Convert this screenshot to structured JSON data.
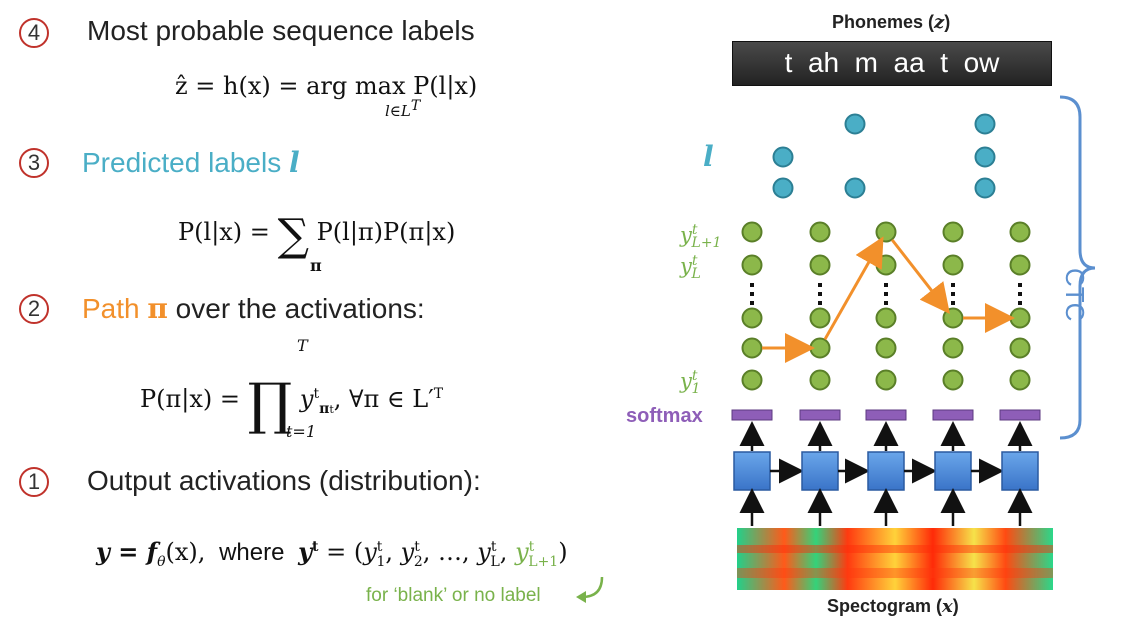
{
  "steps": [
    {
      "num": "4",
      "title": "Most probable sequence labels"
    },
    {
      "num": "3",
      "title_plain": "Predicted labels ",
      "title_var": "l"
    },
    {
      "num": "2",
      "title_colored": "Path ",
      "title_var": "π",
      "title_rest": " over the activations:"
    },
    {
      "num": "1",
      "title": "Output activations (distribution):"
    }
  ],
  "eq4": {
    "lhs": "ẑ = h(x) = arg max",
    "sub": "l∈L",
    "subsup": "T",
    "rhs": "P(l|x)"
  },
  "eq3": {
    "lhs": "P(l|x) =",
    "sum": "∑",
    "sub": "π",
    "rhs": "P(l|π)P(π|x)"
  },
  "eq2": {
    "lhs": "P(π|x) =",
    "prod": "∏",
    "upper": "T",
    "lower": "t=1",
    "term": "y",
    "term_sup": "t",
    "term_sub": "π",
    "term_subsub": "t",
    "rest": ", ∀π ∈ L′",
    "rest_sup": "T"
  },
  "eq1": {
    "lhs": "y = f",
    "lhs_sub": "θ",
    "lhs_rest": "(x),",
    "where": "where",
    "rhs_start": "y",
    "rhs_sup": "t",
    "rhs_eq": " = (",
    "terms": [
      "y",
      "y",
      "…,",
      "y"
    ],
    "blank_term": "y",
    "close": ")"
  },
  "eq1_subs": {
    "y1": "1",
    "y2": "2",
    "yL": "L",
    "yL1": "L+1",
    "sup": "t"
  },
  "blank_note": "for ‘blank’ or no label",
  "diagram": {
    "phonemes_title": "Phonemes (",
    "phonemes_var": "z",
    "phonemes_close": ")",
    "phonemes": "t  ah  m  aa  t  ow",
    "labels_symbol": "l",
    "row_labels": {
      "yL1": "y",
      "yL1_sup": "t",
      "yL1_sub": "L+1",
      "yL": "y",
      "yL_sup": "t",
      "yL_sub": "L",
      "y1": "y",
      "y1_sup": "t",
      "y1_sub": "1"
    },
    "softmax": "softmax",
    "ctc": "CTC",
    "spectrogram_title": "Spectogram (",
    "spectrogram_var": "x",
    "spectrogram_close": ")",
    "colors": {
      "teal": "#4aaec6",
      "green": "#8cb84a",
      "orange": "#f2902b",
      "purple": "#8e5eb8",
      "blue": "#4a86d4",
      "brace": "#5b8fcf"
    }
  }
}
